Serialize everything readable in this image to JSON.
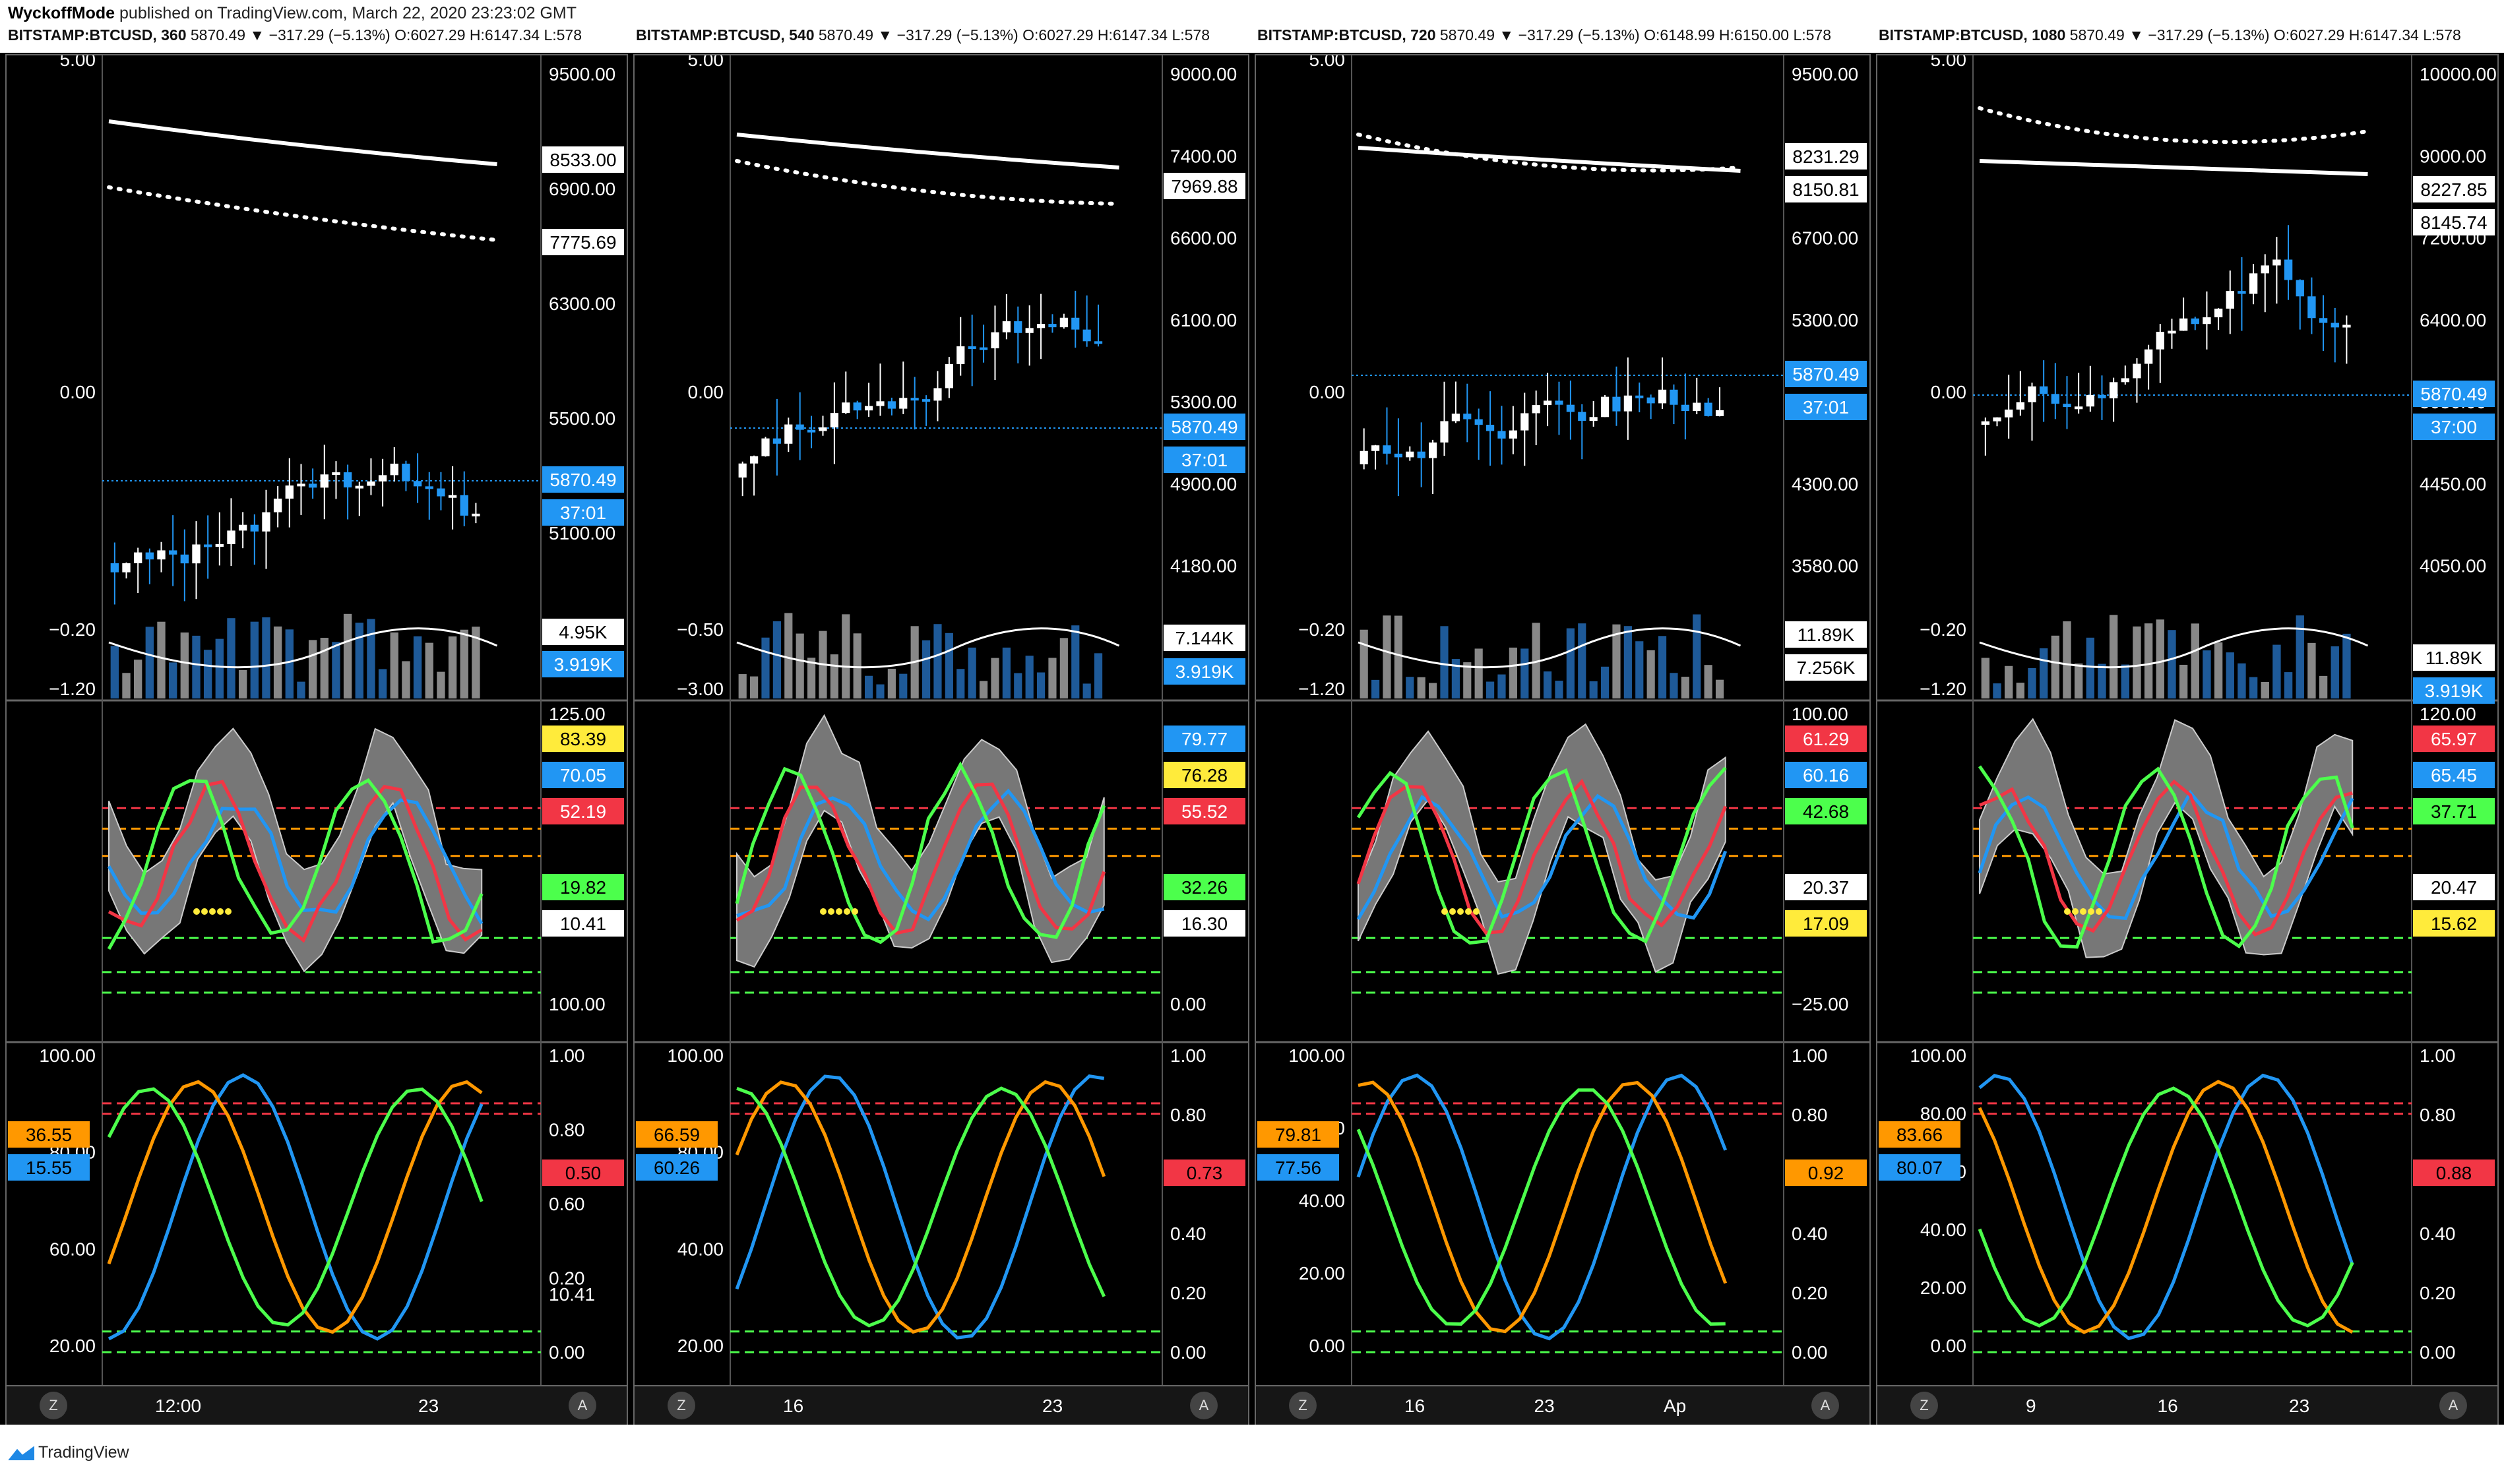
{
  "header": {
    "author": "WyckoffMode",
    "published": "published on TradingView.com, March 22, 2020 23:23:02 GMT"
  },
  "footer": {
    "brand": "TradingView"
  },
  "charts": [
    {
      "symbol": "BITSTAMP:BTCUSD, 360",
      "ohlc": "5870.49 ▼ −317.29 (−5.13%) O:6027.29 H:6147.34 L:578",
      "x_labels": [
        "12:00",
        "23"
      ],
      "left_top": [
        "5.00",
        "0.00",
        "−0.20",
        "−1.20"
      ],
      "price_ticks": [
        "9500.00",
        "6900.00",
        "6300.00",
        "5500.00",
        "5100.00"
      ],
      "price_tags": [
        "8533.00",
        "7775.69",
        "5870.49",
        "37:01",
        "4.95K",
        "3.919K"
      ],
      "osc_ticks": [
        "125.00",
        "100.00",
        "10.41"
      ],
      "osc_tags": [
        "83.39",
        "70.05",
        "52.19",
        "19.82",
        "10.41"
      ],
      "stoch_left": [
        "100.00",
        "80.00",
        "60.00",
        "20.00"
      ],
      "stoch_left_tags": [
        "36.55",
        "15.55"
      ],
      "stoch_right": [
        "1.00",
        "0.80",
        "0.60",
        "0.20",
        "0.00"
      ],
      "stoch_right_tags": [
        "0.50"
      ]
    },
    {
      "symbol": "BITSTAMP:BTCUSD, 540",
      "ohlc": "5870.49 ▼ −317.29 (−5.13%) O:6027.29 H:6147.34 L:578",
      "x_labels": [
        "16",
        "23"
      ],
      "left_top": [
        "5.00",
        "0.00",
        "−0.50",
        "−3.00"
      ],
      "price_ticks": [
        "9000.00",
        "7400.00",
        "6600.00",
        "6100.00",
        "5300.00",
        "4900.00",
        "4180.00"
      ],
      "price_tags": [
        "7969.88",
        "5870.49",
        "37:01",
        "7.144K",
        "3.919K"
      ],
      "osc_ticks": [
        "0.00"
      ],
      "osc_tags": [
        "79.77",
        "76.28",
        "55.52",
        "32.26",
        "16.30"
      ],
      "stoch_left": [
        "100.00",
        "80.00",
        "40.00",
        "20.00"
      ],
      "stoch_left_tags": [
        "66.59",
        "60.26"
      ],
      "stoch_right": [
        "1.00",
        "0.80",
        "0.60",
        "0.40",
        "0.20",
        "0.00"
      ],
      "stoch_right_tags": [
        "0.73"
      ]
    },
    {
      "symbol": "BITSTAMP:BTCUSD, 720",
      "ohlc": "5870.49 ▼ −317.29 (−5.13%) O:6148.99 H:6150.00 L:578",
      "x_labels": [
        "16",
        "23",
        "Ap"
      ],
      "left_top": [
        "5.00",
        "0.00",
        "−0.20",
        "−1.20"
      ],
      "price_ticks": [
        "9500.00",
        "7500.00",
        "6700.00",
        "5300.00",
        "4700.00",
        "4300.00",
        "3580.00"
      ],
      "price_tags": [
        "8231.29",
        "8150.81",
        "5870.49",
        "37:01",
        "11.89K",
        "7.256K"
      ],
      "osc_ticks": [
        "100.00",
        "−25.00"
      ],
      "osc_tags": [
        "61.29",
        "60.16",
        "42.68",
        "20.37",
        "17.09"
      ],
      "stoch_left": [
        "100.00",
        "60.00",
        "40.00",
        "20.00",
        "0.00"
      ],
      "stoch_left_tags": [
        "79.81",
        "77.56"
      ],
      "stoch_right": [
        "1.00",
        "0.80",
        "0.60",
        "0.40",
        "0.20",
        "0.00"
      ],
      "stoch_right_tags": [
        "0.92"
      ]
    },
    {
      "symbol": "BITSTAMP:BTCUSD, 1080",
      "ohlc": "5870.49 ▼ −317.29 (−5.13%) O:6027.29 H:6147.34 L:578",
      "x_labels": [
        "9",
        "16",
        "23"
      ],
      "left_top": [
        "5.00",
        "0.00",
        "−0.20",
        "−1.20"
      ],
      "price_ticks": [
        "10000.00",
        "9000.00",
        "7200.00",
        "6400.00",
        "5050.00",
        "4450.00",
        "4050.00"
      ],
      "price_tags": [
        "8227.85",
        "8145.74",
        "5870.49",
        "37:00",
        "11.89K",
        "3.919K"
      ],
      "osc_ticks": [
        "120.00"
      ],
      "osc_tags": [
        "65.97",
        "65.45",
        "37.71",
        "20.47",
        "15.62"
      ],
      "stoch_left": [
        "100.00",
        "80.00",
        "60.00",
        "40.00",
        "20.00",
        "0.00"
      ],
      "stoch_left_tags": [
        "83.66",
        "80.07"
      ],
      "stoch_right": [
        "1.00",
        "0.80",
        "0.60",
        "0.40",
        "0.20",
        "0.00"
      ],
      "stoch_right_tags": [
        "0.88"
      ]
    }
  ],
  "colors": {
    "up": "#ffffff",
    "down": "#2196f3",
    "red": "#f23645",
    "orange": "#ff9800",
    "green": "#4cff4c",
    "yellow": "#ffeb3b"
  },
  "axis_buttons": {
    "z": "Z",
    "a": "A"
  }
}
